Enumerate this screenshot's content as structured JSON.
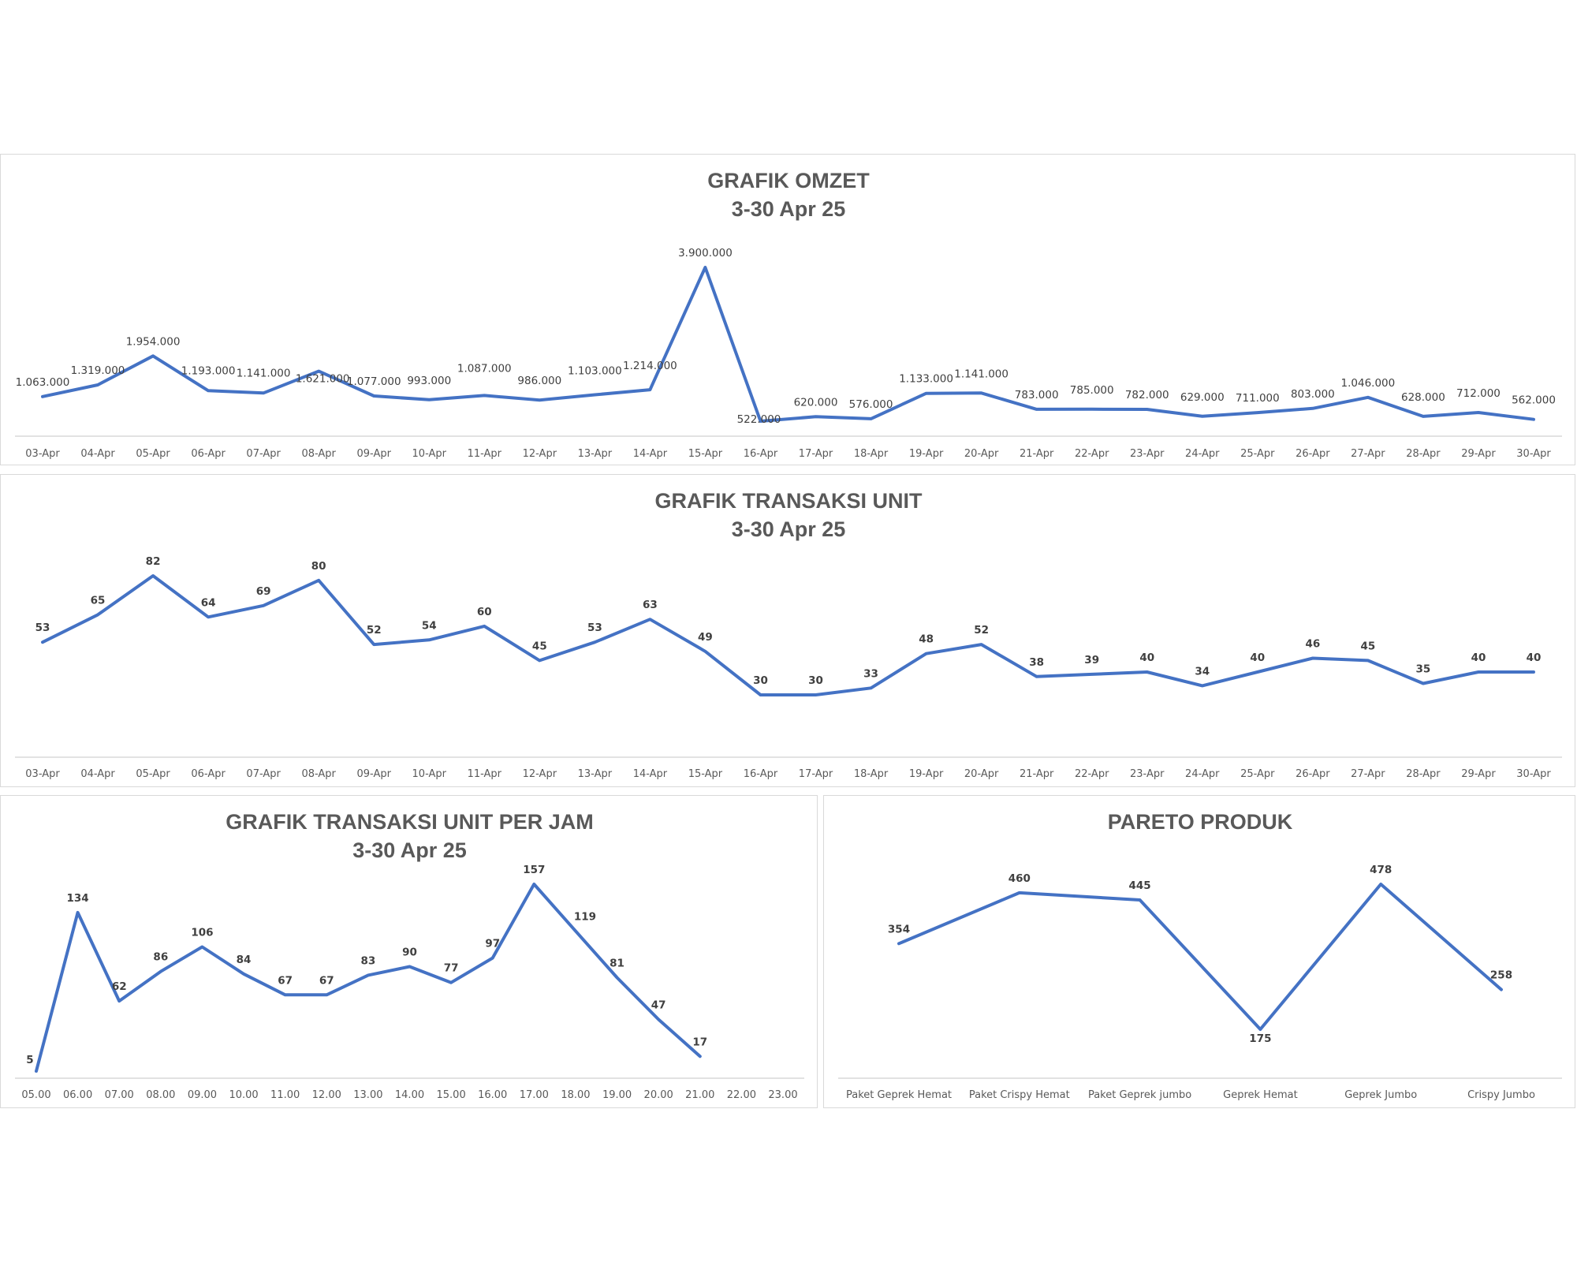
{
  "chart_data": [
    {
      "id": "omzet",
      "type": "line",
      "title": [
        "GRAFIK OMZET",
        "3-30 Apr 25"
      ],
      "categories": [
        "03-Apr",
        "04-Apr",
        "05-Apr",
        "06-Apr",
        "07-Apr",
        "08-Apr",
        "09-Apr",
        "10-Apr",
        "11-Apr",
        "12-Apr",
        "13-Apr",
        "14-Apr",
        "15-Apr",
        "16-Apr",
        "17-Apr",
        "18-Apr",
        "19-Apr",
        "20-Apr",
        "21-Apr",
        "22-Apr",
        "23-Apr",
        "24-Apr",
        "25-Apr",
        "26-Apr",
        "27-Apr",
        "28-Apr",
        "29-Apr",
        "30-Apr"
      ],
      "values": [
        1063000,
        1319000,
        1954000,
        1193000,
        1141000,
        1621000,
        1077000,
        993000,
        1087000,
        986000,
        1103000,
        1214000,
        3900000,
        522000,
        620000,
        576000,
        1133000,
        1141000,
        783000,
        785000,
        782000,
        629000,
        711000,
        803000,
        1046000,
        628000,
        712000,
        562000
      ],
      "labels": [
        "1.063.000",
        "1.319.000",
        "1.954.000",
        "1.193.000",
        "1.141.000",
        "1.621.000",
        "1.077.000",
        "993.000",
        "1.087.000",
        "986.000",
        "1.103.000",
        "1.214.000",
        "3.900.000",
        "522.000",
        "620.000",
        "576.000",
        "1.133.000",
        "1.141.000",
        "783.000",
        "785.000",
        "782.000",
        "629.000",
        "711.000",
        "803.000",
        "1.046.000",
        "628.000",
        "712.000",
        "562.000"
      ],
      "ylim": [
        0,
        4000000
      ],
      "grid": false,
      "legend": "none",
      "color": "#4472c4"
    },
    {
      "id": "unit",
      "type": "line",
      "title": [
        "GRAFIK TRANSAKSI UNIT",
        "3-30 Apr 25"
      ],
      "categories": [
        "03-Apr",
        "04-Apr",
        "05-Apr",
        "06-Apr",
        "07-Apr",
        "08-Apr",
        "09-Apr",
        "10-Apr",
        "11-Apr",
        "12-Apr",
        "13-Apr",
        "14-Apr",
        "15-Apr",
        "16-Apr",
        "17-Apr",
        "18-Apr",
        "19-Apr",
        "20-Apr",
        "21-Apr",
        "22-Apr",
        "23-Apr",
        "24-Apr",
        "25-Apr",
        "26-Apr",
        "27-Apr",
        "28-Apr",
        "29-Apr",
        "30-Apr"
      ],
      "values": [
        53,
        65,
        82,
        64,
        69,
        80,
        52,
        54,
        60,
        45,
        53,
        63,
        49,
        30,
        30,
        33,
        48,
        52,
        38,
        39,
        40,
        34,
        40,
        46,
        45,
        35,
        40,
        40
      ],
      "ylim": [
        0,
        90
      ],
      "grid": false,
      "legend": "none",
      "color": "#4472c4"
    },
    {
      "id": "jam",
      "type": "line",
      "title": [
        "GRAFIK TRANSAKSI UNIT PER JAM",
        "3-30 Apr 25"
      ],
      "categories": [
        "05.00",
        "06.00",
        "07.00",
        "08.00",
        "09.00",
        "10.00",
        "11.00",
        "12.00",
        "13.00",
        "14.00",
        "15.00",
        "16.00",
        "17.00",
        "18.00",
        "19.00",
        "20.00",
        "21.00",
        "22.00",
        "23.00"
      ],
      "values": [
        5,
        134,
        62,
        86,
        106,
        84,
        67,
        67,
        83,
        90,
        77,
        97,
        157,
        119,
        81,
        47,
        17,
        null,
        null
      ],
      "ylim": [
        0,
        170
      ],
      "grid": false,
      "legend": "none",
      "color": "#4472c4"
    },
    {
      "id": "pareto",
      "type": "line",
      "title": [
        "PARETO PRODUK"
      ],
      "categories": [
        "Paket Geprek Hemat",
        "Paket Crispy Hemat",
        "Paket Geprek jumbo",
        "Geprek Hemat",
        "Geprek Jumbo",
        "Crispy Jumbo"
      ],
      "values": [
        354,
        460,
        445,
        175,
        478,
        258
      ],
      "ylim": [
        0,
        600
      ],
      "grid": false,
      "legend": "none",
      "color": "#4472c4"
    }
  ]
}
